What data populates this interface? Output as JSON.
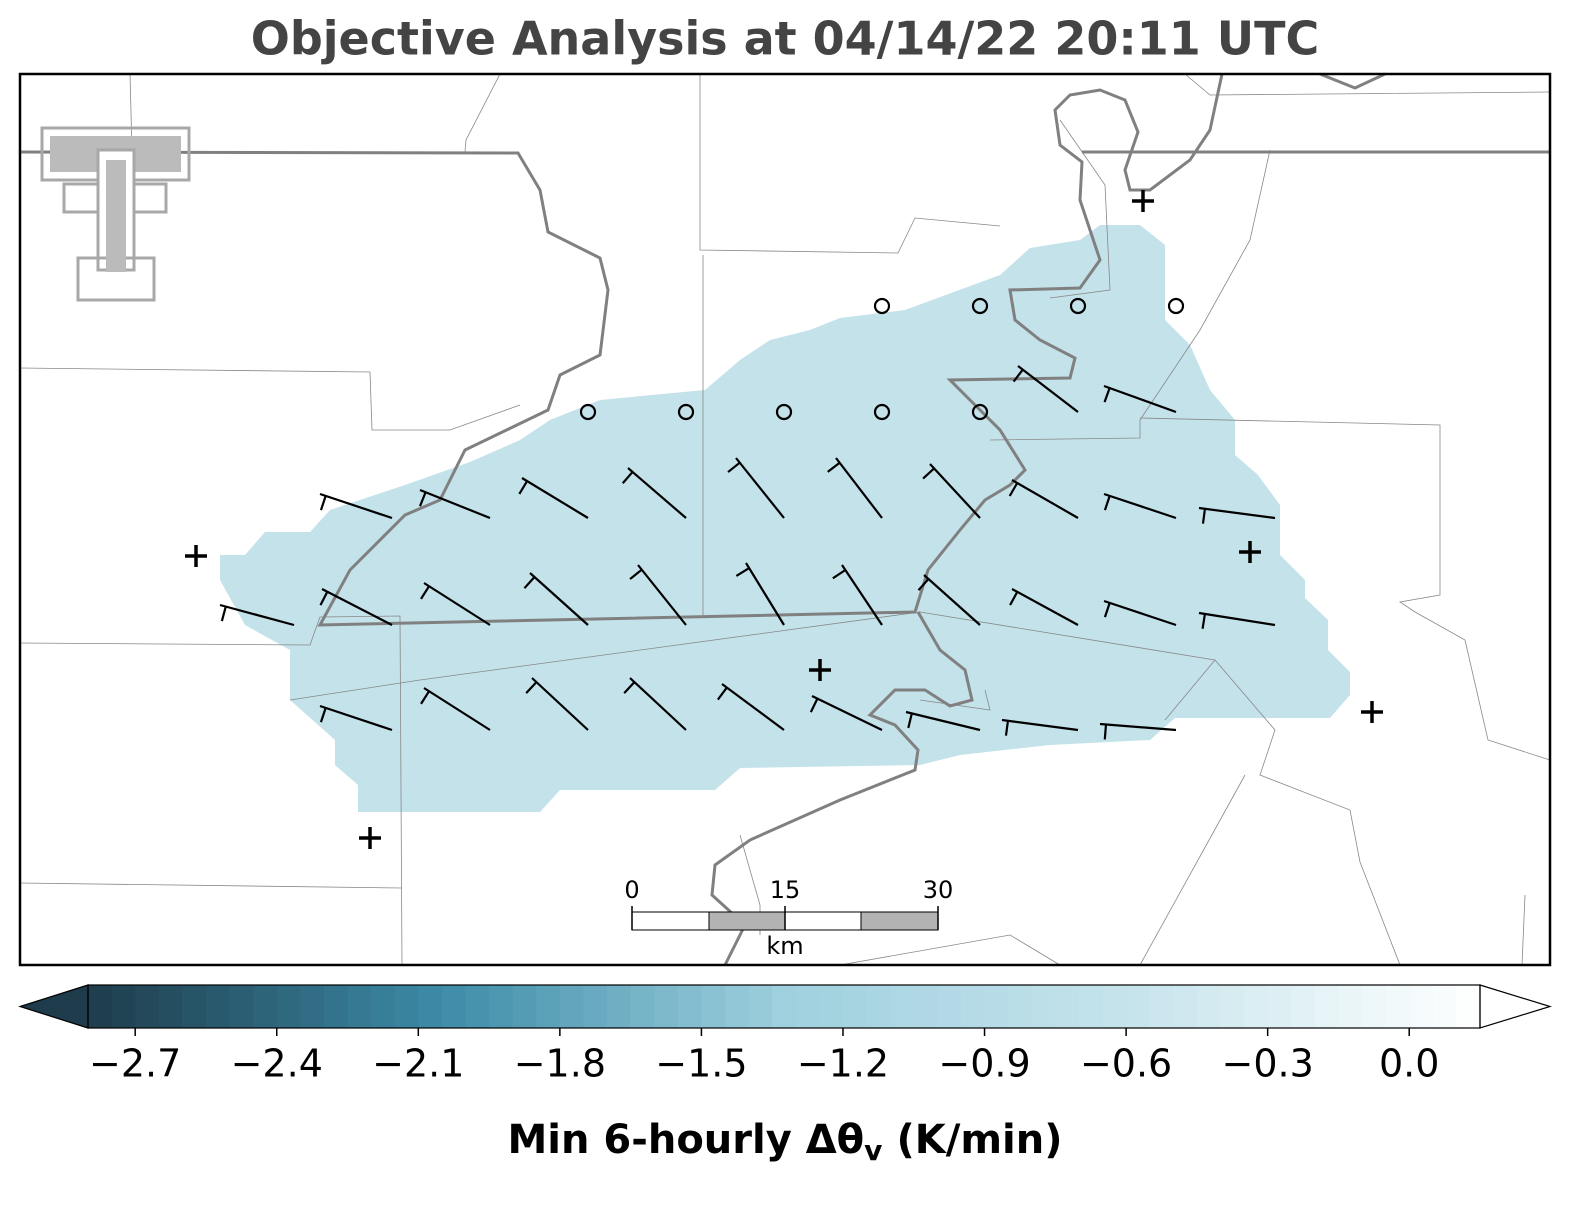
{
  "title": "Objective Analysis at 04/14/22 20:11 UTC",
  "colorbar": {
    "lim": [
      -2.8,
      0.15
    ],
    "step": 0.05,
    "colors": [
      "#1e3c4b",
      "#3b8aa6",
      "#9fd0de",
      "#c6e4ec",
      "#ffffff"
    ],
    "ticks": [
      {
        "value": -2.7,
        "label": "−2.7"
      },
      {
        "value": -2.4,
        "label": "−2.4"
      },
      {
        "value": -2.1,
        "label": "−2.1"
      },
      {
        "value": -1.8,
        "label": "−1.8"
      },
      {
        "value": -1.5,
        "label": "−1.5"
      },
      {
        "value": -1.2,
        "label": "−1.2"
      },
      {
        "value": -0.9,
        "label": "−0.9"
      },
      {
        "value": -0.6,
        "label": "−0.6"
      },
      {
        "value": -0.3,
        "label": "−0.3"
      },
      {
        "value": 0,
        "label": "0.0"
      }
    ],
    "label": {
      "text": "Min 6-hourly Δθ",
      "subscript": "v",
      "unit": "(K/min)"
    }
  },
  "scale_bar": {
    "ticks": [
      0,
      15,
      30
    ],
    "unit": "km"
  }
}
